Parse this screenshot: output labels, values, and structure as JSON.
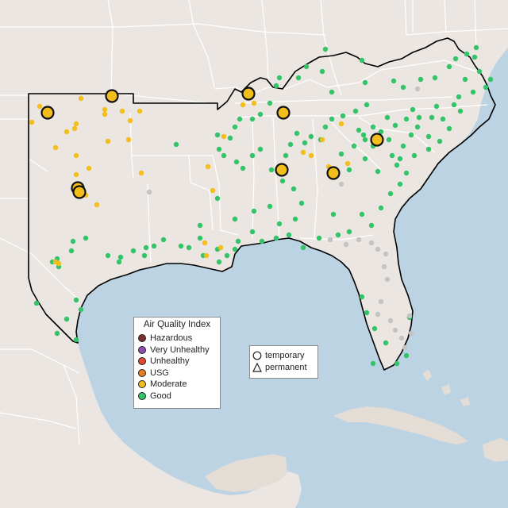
{
  "colors": {
    "water": "#bcd3e3",
    "land": "#ebe6e1",
    "land_dark": "#e3ddd6",
    "state_border": "#ffffff",
    "region_outline": "#000000",
    "good": "#33c46a",
    "moderate": "#f2be1c",
    "no_data": "#c4c4c4",
    "usg": "#e67e22",
    "unhealthy": "#e04a2c",
    "very_unhealthy": "#8e4fb5",
    "hazardous": "#7a2f2f"
  },
  "legend": {
    "title": "Air Quality Index",
    "items": [
      {
        "label": "Hazardous",
        "color": "#7a2f2f"
      },
      {
        "label": "Very Unhealthy",
        "color": "#8e4fb5"
      },
      {
        "label": "Unhealthy",
        "color": "#e04a2c"
      },
      {
        "label": "USG",
        "color": "#e67e22"
      },
      {
        "label": "Moderate",
        "color": "#f2be1c"
      },
      {
        "label": "Good",
        "color": "#33c46a"
      }
    ],
    "types": [
      {
        "label": "temporary",
        "shape": "circle"
      },
      {
        "label": "permanent",
        "shape": "triangle"
      }
    ]
  }
}
